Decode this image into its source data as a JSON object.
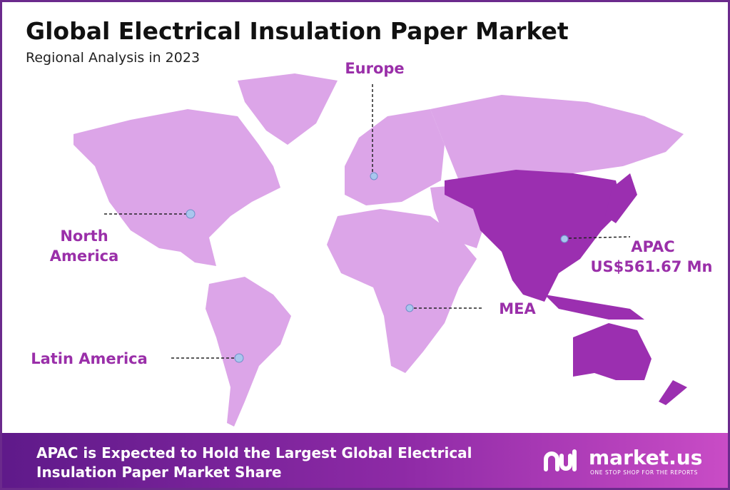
{
  "header": {
    "title": "Global Electrical Insulation Paper Market",
    "subtitle": "Regional Analysis in 2023"
  },
  "regions": [
    {
      "label": "North America"
    },
    {
      "label": "Europe"
    },
    {
      "label": "APAC",
      "value_text": "US$561.67 Mn"
    },
    {
      "label": "MEA"
    },
    {
      "label": "Latin America"
    }
  ],
  "footer": {
    "text": "APAC is Expected to Hold the Largest Global Electrical Insulation Paper Market Share",
    "brand": "market.us",
    "tagline": "ONE STOP SHOP FOR THE REPORTS"
  }
}
